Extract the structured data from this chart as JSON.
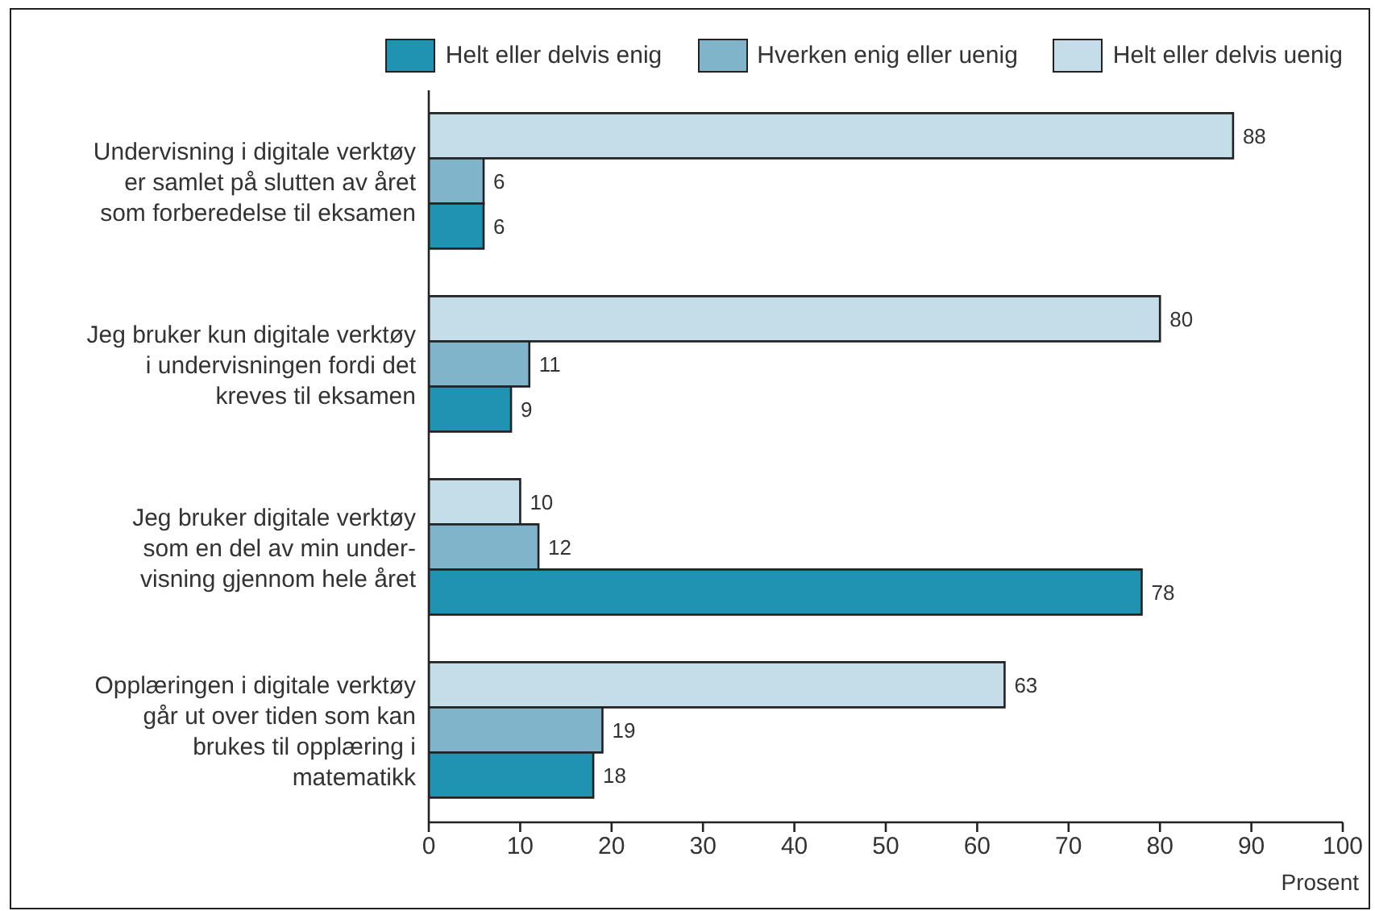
{
  "chart_data": {
    "type": "bar",
    "orientation": "horizontal",
    "categories": [
      "Undervisning i digitale verktøy\ner samlet på slutten av året\nsom forberedelse til eksamen",
      "Jeg bruker kun digitale verktøy\ni undervisningen fordi det\nkreves til eksamen",
      "Jeg bruker digitale verktøy\nsom en del av min under-\nvisning gjennom hele året",
      "Opplæringen i digitale verktøy\ngår ut over tiden som kan\nbrukes til opplæring i\nmatematikk"
    ],
    "series": [
      {
        "name": "Helt eller delvis enig",
        "color": "#1f93b1",
        "values": [
          6,
          9,
          78,
          18
        ]
      },
      {
        "name": "Hverken enig eller uenig",
        "color": "#80b4cb",
        "values": [
          6,
          11,
          12,
          19
        ]
      },
      {
        "name": "Helt eller delvis uenig",
        "color": "#c5dce9",
        "values": [
          88,
          80,
          10,
          63
        ]
      }
    ],
    "xlim": [
      0,
      100
    ],
    "xticks": [
      0,
      10,
      20,
      30,
      40,
      50,
      60,
      70,
      80,
      90,
      100
    ],
    "xlabel": "Prosent",
    "data_labels": true,
    "legend": "top right"
  }
}
